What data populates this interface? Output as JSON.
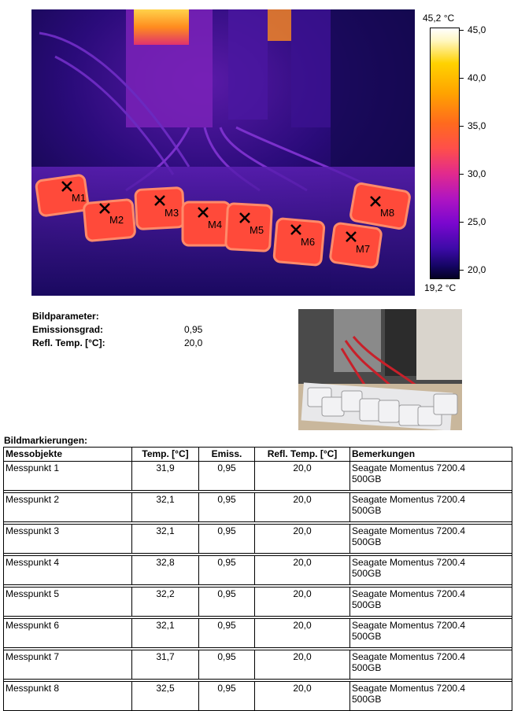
{
  "thermal": {
    "max_label": "45,2 °C",
    "min_label": "19,2 °C",
    "ticks": [
      "45,0",
      "40,0",
      "35,0",
      "30,0",
      "25,0",
      "20,0"
    ],
    "markers": [
      "M1",
      "M2",
      "M3",
      "M4",
      "M5",
      "M6",
      "M7",
      "M8"
    ]
  },
  "params": {
    "title": "Bildparameter:",
    "emission_label": "Emissionsgrad:",
    "emission_value": "0,95",
    "refl_label": "Refl. Temp. [°C]:",
    "refl_value": "20,0"
  },
  "marks": {
    "title": "Bildmarkierungen:",
    "headers": [
      "Messobjekte",
      "Temp. [°C]",
      "Emiss.",
      "Refl. Temp. [°C]",
      "Bemerkungen"
    ],
    "rows": [
      {
        "obj": "Messpunkt 1",
        "temp": "31,9",
        "emiss": "0,95",
        "refl": "20,0",
        "note1": "Seagate Momentus 7200.4",
        "note2": "500GB"
      },
      {
        "obj": "Messpunkt 2",
        "temp": "32,1",
        "emiss": "0,95",
        "refl": "20,0",
        "note1": "Seagate Momentus 7200.4",
        "note2": "500GB"
      },
      {
        "obj": "Messpunkt 3",
        "temp": "32,1",
        "emiss": "0,95",
        "refl": "20,0",
        "note1": "Seagate Momentus 7200.4",
        "note2": "500GB"
      },
      {
        "obj": "Messpunkt 4",
        "temp": "32,8",
        "emiss": "0,95",
        "refl": "20,0",
        "note1": "Seagate Momentus 7200.4",
        "note2": "500GB"
      },
      {
        "obj": "Messpunkt 5",
        "temp": "32,2",
        "emiss": "0,95",
        "refl": "20,0",
        "note1": "Seagate Momentus 7200.4",
        "note2": "500GB"
      },
      {
        "obj": "Messpunkt 6",
        "temp": "32,1",
        "emiss": "0,95",
        "refl": "20,0",
        "note1": "Seagate Momentus 7200.4",
        "note2": "500GB"
      },
      {
        "obj": "Messpunkt 7",
        "temp": "31,7",
        "emiss": "0,95",
        "refl": "20,0",
        "note1": "Seagate Momentus 7200.4",
        "note2": "500GB"
      },
      {
        "obj": "Messpunkt 8",
        "temp": "32,5",
        "emiss": "0,95",
        "refl": "20,0",
        "note1": "Seagate Momentus 7200.4",
        "note2": "500GB"
      }
    ]
  }
}
